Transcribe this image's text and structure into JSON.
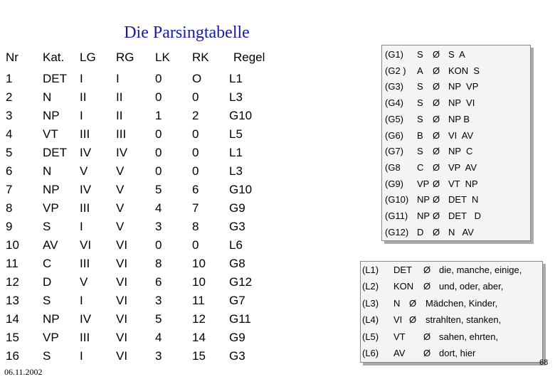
{
  "header": {
    "title": "Die Parsingtabelle"
  },
  "table": {
    "columns": [
      "Nr",
      "Kat.",
      "LG",
      "RG",
      "LK",
      "RK",
      "Regel"
    ],
    "rows": [
      [
        "1",
        "DET",
        "I",
        "I",
        "0",
        "O",
        "L1"
      ],
      [
        "2",
        "N",
        "II",
        "II",
        "0",
        "0",
        "L3"
      ],
      [
        "3",
        "NP",
        "I",
        "II",
        "1",
        "2",
        "G10"
      ],
      [
        "4",
        "VT",
        "III",
        "III",
        "0",
        "0",
        "L5"
      ],
      [
        "5",
        "DET",
        "IV",
        "IV",
        "0",
        "0",
        "L1"
      ],
      [
        "6",
        "N",
        "V",
        "V",
        "0",
        "0",
        "L3"
      ],
      [
        "7",
        "NP",
        "IV",
        "V",
        "5",
        "6",
        "G10"
      ],
      [
        "8",
        "VP",
        "III",
        "V",
        "4",
        "7",
        "G9"
      ],
      [
        "9",
        "S",
        "I",
        "V",
        "3",
        "8",
        "G3"
      ],
      [
        "10",
        "AV",
        "VI",
        "VI",
        "0",
        "0",
        "L6"
      ],
      [
        "11",
        "C",
        "III",
        "VI",
        "8",
        "10",
        "G8"
      ],
      [
        "12",
        "D",
        "V",
        "VI",
        "6",
        "10",
        "G12"
      ],
      [
        "13",
        "S",
        "I",
        "VI",
        "3",
        "11",
        "G7"
      ],
      [
        "14",
        "NP",
        "IV",
        "VI",
        "5",
        "12",
        "G11"
      ],
      [
        "15",
        "VP",
        "III",
        "VI",
        "4",
        "14",
        "G9"
      ],
      [
        "16",
        "S",
        "I",
        "VI",
        "3",
        "15",
        "G3"
      ]
    ]
  },
  "symbol": "Ø",
  "grammar": [
    {
      "label": "(G1)",
      "lhs": "S",
      "rhs": "S  A"
    },
    {
      "label": "(G2 )",
      "lhs": "A",
      "rhs": "KON  S"
    },
    {
      "label": "(G3)",
      "lhs": "S",
      "rhs": "NP  VP"
    },
    {
      "label": "(G4)",
      "lhs": "S",
      "rhs": "NP  VI"
    },
    {
      "label": "(G5)",
      "lhs": "S",
      "rhs": "NP B"
    },
    {
      "label": "(G6)",
      "lhs": "B",
      "rhs": "VI  AV"
    },
    {
      "label": "(G7)",
      "lhs": "S",
      "rhs": "NP  C"
    },
    {
      "label": "(G8",
      "lhs": "C",
      "rhs": "VP  AV"
    },
    {
      "label": "(G9)",
      "lhs": "VP",
      "rhs": "VT  NP"
    },
    {
      "label": "(G10)",
      "lhs": "NP",
      "rhs": "DET  N"
    },
    {
      "label": "(G11)",
      "lhs": "NP",
      "rhs": "DET   D"
    },
    {
      "label": "(G12)",
      "lhs": "D",
      "rhs": "N   AV"
    }
  ],
  "lexicon": [
    {
      "label": "(L1)",
      "lhs": "DET",
      "rhs": "die, manche, einige,"
    },
    {
      "label": "(L2)",
      "lhs": "KON",
      "rhs": "und, oder, aber,"
    },
    {
      "label": "(L3)",
      "lhs": "N",
      "rhs": "Mädchen, Kinder,"
    },
    {
      "label": "(L4)",
      "lhs": "VI",
      "rhs": "strahlten, stanken,"
    },
    {
      "label": "(L5)",
      "lhs": "VT",
      "rhs": "sahen, ehrten,"
    },
    {
      "label": "(L6)",
      "lhs": "AV",
      "rhs": "dort, hier"
    }
  ],
  "footer": {
    "date": "06.11.2002",
    "page": "68"
  }
}
